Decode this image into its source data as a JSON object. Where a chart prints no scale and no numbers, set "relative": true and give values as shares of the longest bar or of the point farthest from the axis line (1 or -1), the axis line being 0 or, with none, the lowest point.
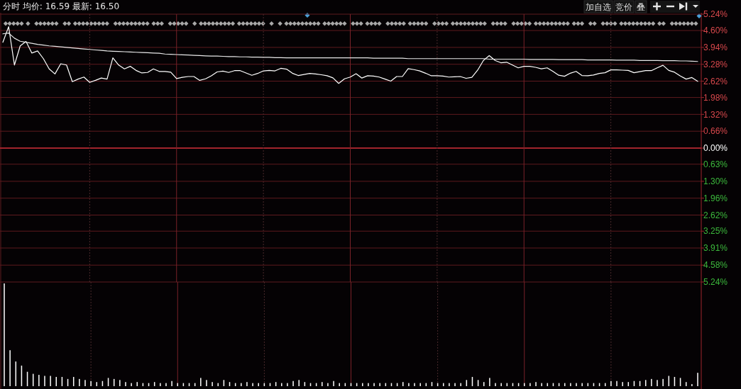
{
  "chart_data": [
    {
      "type": "line",
      "title": "分时 均价: 16.59 最新: 16.50",
      "annotations": [
        "加自选",
        "竞价",
        "叠"
      ],
      "categories": [
        null,
        null,
        null,
        null,
        null,
        null,
        null,
        null,
        null,
        null,
        null,
        null,
        null,
        null,
        null,
        null,
        null,
        null,
        null,
        null,
        null,
        null,
        null,
        null,
        null,
        null,
        null,
        null,
        null,
        null,
        null,
        null,
        null,
        null,
        null,
        null,
        null,
        null,
        null,
        null,
        null,
        null,
        null,
        null,
        null,
        null,
        null,
        null,
        null,
        null,
        null,
        null,
        null,
        null,
        null,
        null,
        null,
        null,
        null,
        null,
        null,
        null,
        null,
        null,
        null,
        null,
        null,
        null,
        null,
        null,
        null,
        null,
        null,
        null,
        null,
        null,
        null,
        null,
        null,
        null,
        null,
        null,
        null,
        null,
        null,
        null,
        null,
        null,
        null,
        null,
        null,
        null,
        null,
        null,
        null,
        null,
        null,
        null,
        null,
        null,
        null,
        null,
        null,
        null,
        null,
        null,
        null,
        null,
        null,
        null,
        null,
        null,
        null,
        null,
        null,
        null,
        null,
        null,
        null,
        null,
        null
      ],
      "series": [
        {
          "color": "#ffffff",
          "values": [
            4.14,
            4.75,
            3.25,
            4.0,
            4.17,
            3.72,
            3.8,
            3.5,
            3.1,
            2.9,
            3.3,
            3.25,
            2.6,
            2.7,
            2.78,
            2.57,
            2.65,
            2.74,
            2.7,
            3.53,
            3.25,
            3.1,
            3.2,
            3.04,
            2.94,
            2.96,
            3.1,
            3.0,
            3.0,
            2.97,
            2.72,
            2.77,
            2.8,
            2.8,
            2.65,
            2.71,
            2.83,
            2.98,
            3.01,
            2.96,
            3.03,
            3.03,
            2.94,
            2.85,
            2.92,
            3.02,
            3.04,
            3.02,
            3.12,
            3.09,
            2.93,
            2.84,
            2.88,
            2.92,
            2.9,
            2.87,
            2.83,
            2.75,
            2.53,
            2.71,
            2.78,
            2.91,
            2.74,
            2.83,
            2.82,
            2.78,
            2.7,
            2.62,
            2.8,
            2.8,
            3.11,
            3.07,
            3.02,
            2.93,
            2.83,
            2.83,
            2.82,
            2.78,
            2.79,
            2.8,
            2.73,
            2.77,
            3.05,
            3.43,
            3.62,
            3.43,
            3.34,
            3.36,
            3.25,
            3.14,
            3.2,
            3.2,
            3.16,
            3.1,
            3.14,
            3.0,
            2.85,
            2.81,
            2.93,
            3.0,
            2.84,
            2.83,
            2.86,
            2.92,
            2.95,
            3.06,
            3.06,
            3.05,
            3.04,
            2.95,
            2.99,
            3.03,
            3.03,
            3.14,
            3.24,
            3.04,
            2.97,
            2.82,
            2.7,
            2.76,
            2.61
          ]
        },
        {
          "color": "#e8e8e8",
          "values": [
            4.47,
            4.5,
            4.3,
            4.18,
            4.14,
            4.1,
            4.06,
            4.03,
            4.0,
            3.98,
            3.96,
            3.94,
            3.92,
            3.9,
            3.88,
            3.86,
            3.84,
            3.82,
            3.8,
            3.79,
            3.78,
            3.77,
            3.76,
            3.75,
            3.74,
            3.73,
            3.72,
            3.71,
            3.68,
            3.67,
            3.66,
            3.65,
            3.64,
            3.63,
            3.62,
            3.61,
            3.6,
            3.6,
            3.59,
            3.58,
            3.58,
            3.57,
            3.57,
            3.56,
            3.56,
            3.55,
            3.55,
            3.54,
            3.54,
            3.53,
            3.53,
            3.53,
            3.53,
            3.53,
            3.53,
            3.53,
            3.53,
            3.53,
            3.53,
            3.53,
            3.53,
            3.53,
            3.53,
            3.53,
            3.52,
            3.52,
            3.52,
            3.52,
            3.52,
            3.52,
            3.5,
            3.5,
            3.5,
            3.5,
            3.5,
            3.5,
            3.5,
            3.5,
            3.5,
            3.5,
            3.5,
            3.5,
            3.5,
            3.5,
            3.48,
            3.48,
            3.48,
            3.48,
            3.48,
            3.48,
            3.48,
            3.47,
            3.47,
            3.47,
            3.47,
            3.47,
            3.46,
            3.46,
            3.46,
            3.46,
            3.46,
            3.45,
            3.45,
            3.45,
            3.45,
            3.45,
            3.44,
            3.44,
            3.44,
            3.44,
            3.43,
            3.43,
            3.43,
            3.43,
            3.42,
            3.42,
            3.42,
            3.41,
            3.41,
            3.4,
            3.39
          ]
        }
      ],
      "ylim": [
        -5.24,
        5.24
      ],
      "yticks": [
        {
          "value": 5.24,
          "label": "5.24%"
        },
        {
          "value": 4.6,
          "label": "4.60%"
        },
        {
          "value": 3.94,
          "label": "3.94%"
        },
        {
          "value": 3.28,
          "label": "3.28%"
        },
        {
          "value": 2.62,
          "label": "2.62%"
        },
        {
          "value": 1.98,
          "label": "1.98%"
        },
        {
          "value": 1.32,
          "label": "1.32%"
        },
        {
          "value": 0.66,
          "label": "0.66%"
        },
        {
          "value": 0,
          "label": "0.00%"
        },
        {
          "value": -0.63,
          "label": "0.63%"
        },
        {
          "value": -1.3,
          "label": "1.30%"
        },
        {
          "value": -1.96,
          "label": "1.96%"
        },
        {
          "value": -2.62,
          "label": "2.62%"
        },
        {
          "value": -3.25,
          "label": "3.25%"
        },
        {
          "value": -3.91,
          "label": "3.91%"
        },
        {
          "value": -4.58,
          "label": "4.58%"
        },
        {
          "value": -5.24,
          "label": "5.24%"
        }
      ],
      "grid": true,
      "tick_labels": "y",
      "ref_lines": [
        {
          "axis": "y",
          "value": 0,
          "color": "#a0242c"
        }
      ]
    },
    {
      "type": "bar",
      "relative": true,
      "color": "#ffffff",
      "grid": "x",
      "tick_labels": false,
      "categories": [
        null,
        null,
        null,
        null,
        null,
        null,
        null,
        null,
        null,
        null,
        null,
        null,
        null,
        null,
        null,
        null,
        null,
        null,
        null,
        null,
        null,
        null,
        null,
        null,
        null,
        null,
        null,
        null,
        null,
        null,
        null,
        null,
        null,
        null,
        null,
        null,
        null,
        null,
        null,
        null,
        null,
        null,
        null,
        null,
        null,
        null,
        null,
        null,
        null,
        null,
        null,
        null,
        null,
        null,
        null,
        null,
        null,
        null,
        null,
        null,
        null,
        null,
        null,
        null,
        null,
        null,
        null,
        null,
        null,
        null,
        null,
        null,
        null,
        null,
        null,
        null,
        null,
        null,
        null,
        null,
        null,
        null,
        null,
        null,
        null,
        null,
        null,
        null,
        null,
        null,
        null,
        null,
        null,
        null,
        null,
        null,
        null,
        null,
        null,
        null,
        null,
        null,
        null,
        null,
        null,
        null,
        null,
        null,
        null,
        null,
        null,
        null,
        null,
        null,
        null,
        null,
        null,
        null,
        null,
        null,
        null
      ],
      "values": [
        1,
        0.35,
        0.24,
        0.2,
        0.14,
        0.12,
        0.11,
        0.1,
        0.1,
        0.09,
        0.09,
        0.07,
        0.09,
        0.07,
        0.06,
        0.05,
        0.04,
        0.05,
        0.08,
        0.07,
        0.06,
        0.04,
        0.03,
        0.04,
        0.03,
        0.03,
        0.04,
        0.03,
        0.03,
        0.05,
        0.03,
        0.03,
        0.03,
        0.03,
        0.08,
        0.06,
        0.04,
        0.03,
        0.06,
        0.04,
        0.03,
        0.03,
        0.04,
        0.03,
        0.03,
        0.03,
        0.03,
        0.04,
        0.03,
        0.03,
        0.05,
        0.06,
        0.04,
        0.03,
        0.03,
        0.04,
        0.03,
        0.05,
        0.03,
        0.03,
        0.03,
        0.03,
        0.03,
        0.03,
        0.03,
        0.03,
        0.03,
        0.03,
        0.03,
        0.04,
        0.03,
        0.03,
        0.03,
        0.03,
        0.04,
        0.03,
        0.03,
        0.03,
        0.03,
        0.03,
        0.06,
        0.09,
        0.06,
        0.04,
        0.08,
        0.03,
        0.03,
        0.03,
        0.03,
        0.03,
        0.03,
        0.03,
        0.04,
        0.03,
        0.03,
        0.03,
        0.03,
        0.03,
        0.03,
        0.03,
        0.03,
        0.03,
        0.03,
        0.03,
        0.03,
        0.05,
        0.05,
        0.04,
        0.04,
        0.05,
        0.05,
        0.06,
        0.07,
        0.06,
        0.07,
        0.1,
        0.09,
        0.08,
        0.04,
        0.02,
        0.13
      ]
    }
  ]
}
